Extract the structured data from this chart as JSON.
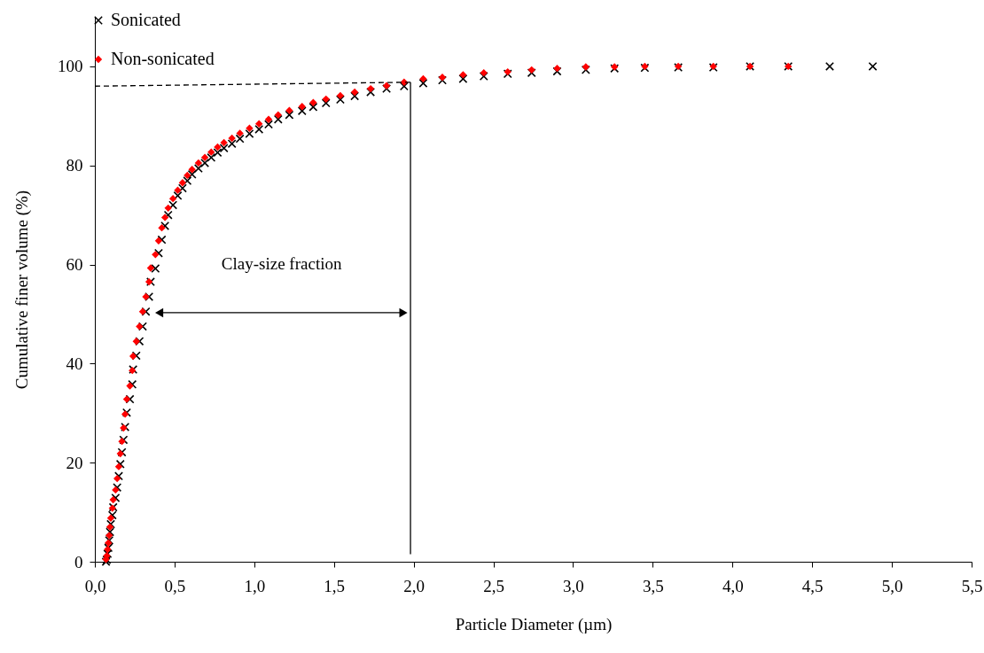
{
  "chart_data": {
    "type": "scatter",
    "xlabel": "Particle Diameter (µm)",
    "ylabel": "Cumulative finer volume (%)",
    "xlim": [
      0,
      5.5
    ],
    "xticks": [
      {
        "value": 0,
        "label": "0,0"
      },
      {
        "value": 0.5,
        "label": "0,5"
      },
      {
        "value": 1,
        "label": "1,0"
      },
      {
        "value": 1.5,
        "label": "1,5"
      },
      {
        "value": 2,
        "label": "2,0"
      },
      {
        "value": 2.5,
        "label": "2,5"
      },
      {
        "value": 3,
        "label": "3,0"
      },
      {
        "value": 3.5,
        "label": "3,5"
      },
      {
        "value": 4,
        "label": "4,0"
      },
      {
        "value": 4.5,
        "label": "4,5"
      },
      {
        "value": 5,
        "label": "5,0"
      },
      {
        "value": 5.5,
        "label": "5,5"
      }
    ],
    "ylim": [
      0,
      110
    ],
    "yticks": [
      0,
      20,
      40,
      60,
      80,
      100
    ],
    "grid": false,
    "legend": "top left",
    "series": [
      {
        "name": "Sonicated",
        "color": "#000000",
        "marker": "cross",
        "x": [
          0.07,
          0.075,
          0.08,
          0.085,
          0.09,
          0.095,
          0.1,
          0.11,
          0.115,
          0.13,
          0.14,
          0.15,
          0.16,
          0.17,
          0.18,
          0.19,
          0.2,
          0.22,
          0.235,
          0.24,
          0.26,
          0.28,
          0.3,
          0.32,
          0.34,
          0.35,
          0.38,
          0.4,
          0.42,
          0.44,
          0.46,
          0.49,
          0.52,
          0.55,
          0.58,
          0.61,
          0.65,
          0.69,
          0.73,
          0.77,
          0.81,
          0.86,
          0.91,
          0.97,
          1.03,
          1.09,
          1.15,
          1.22,
          1.3,
          1.37,
          1.45,
          1.54,
          1.63,
          1.73,
          1.83,
          1.94,
          2.06,
          2.18,
          2.31,
          2.44,
          2.59,
          2.74,
          2.9,
          3.08,
          3.26,
          3.45,
          3.66,
          3.88,
          4.11,
          4.35,
          4.61,
          4.88
        ],
        "values": [
          0,
          0.4,
          1.6,
          2.8,
          4.3,
          6,
          7.6,
          9.4,
          11,
          12.9,
          15,
          17.3,
          19.7,
          22.1,
          24.6,
          27.2,
          30.1,
          32.8,
          35.8,
          38.8,
          41.6,
          44.5,
          47.5,
          50.5,
          53.5,
          56.5,
          59.2,
          62.3,
          65,
          67.8,
          70,
          72,
          73.9,
          75.4,
          76.9,
          78.2,
          79.4,
          80.5,
          81.6,
          82.6,
          83.5,
          84.4,
          85.4,
          86.4,
          87.3,
          88.3,
          89.3,
          90.2,
          91,
          91.8,
          92.6,
          93.3,
          94,
          94.8,
          95.5,
          96,
          96.6,
          97.2,
          97.5,
          98,
          98.5,
          98.7,
          99,
          99.3,
          99.6,
          99.7,
          99.8,
          99.8,
          100,
          100,
          100,
          100
        ]
      },
      {
        "name": "Non-sonicated",
        "color": "#ff0000",
        "marker": "diamond",
        "x": [
          0.07,
          0.075,
          0.08,
          0.085,
          0.09,
          0.095,
          0.1,
          0.11,
          0.115,
          0.13,
          0.14,
          0.15,
          0.16,
          0.17,
          0.18,
          0.19,
          0.2,
          0.22,
          0.235,
          0.24,
          0.26,
          0.28,
          0.3,
          0.32,
          0.34,
          0.35,
          0.38,
          0.4,
          0.42,
          0.44,
          0.46,
          0.49,
          0.52,
          0.55,
          0.58,
          0.61,
          0.65,
          0.69,
          0.73,
          0.77,
          0.81,
          0.86,
          0.91,
          0.97,
          1.03,
          1.09,
          1.15,
          1.22,
          1.3,
          1.37,
          1.45,
          1.54,
          1.63,
          1.73,
          1.83,
          1.94,
          2.06,
          2.18,
          2.31,
          2.44,
          2.59,
          2.74,
          2.9,
          3.08,
          3.26,
          3.45,
          3.66,
          3.88,
          4.11,
          4.35
        ],
        "values": [
          0.5,
          1.2,
          2.5,
          3.8,
          5.3,
          7,
          8.8,
          10.8,
          12.5,
          14.5,
          16.8,
          19.2,
          21.8,
          24.3,
          27,
          29.8,
          32.8,
          35.5,
          38.6,
          41.5,
          44.5,
          47.5,
          50.5,
          53.5,
          56.5,
          59.3,
          62,
          64.8,
          67.4,
          69.5,
          71.4,
          73.3,
          75,
          76.5,
          78,
          79.2,
          80.5,
          81.6,
          82.7,
          83.7,
          84.6,
          85.5,
          86.5,
          87.5,
          88.4,
          89.3,
          90.2,
          91.1,
          91.9,
          92.7,
          93.4,
          94.1,
          94.8,
          95.5,
          96.1,
          96.8,
          97.5,
          97.8,
          98.3,
          98.7,
          98.9,
          99.3,
          99.6,
          99.9,
          99.9,
          100,
          100,
          100,
          100,
          100
        ]
      },
      {
        "type": "line",
        "color": "#000000",
        "line_style": "dashed",
        "x": [
          0,
          1.98
        ],
        "values": [
          96,
          96.8
        ]
      },
      {
        "type": "line",
        "color": "#000000",
        "line_style": "solid",
        "x": [
          1.98,
          1.98
        ],
        "values": [
          1.5,
          96.8
        ]
      }
    ],
    "annotations": [
      "Clay-size fraction"
    ]
  }
}
